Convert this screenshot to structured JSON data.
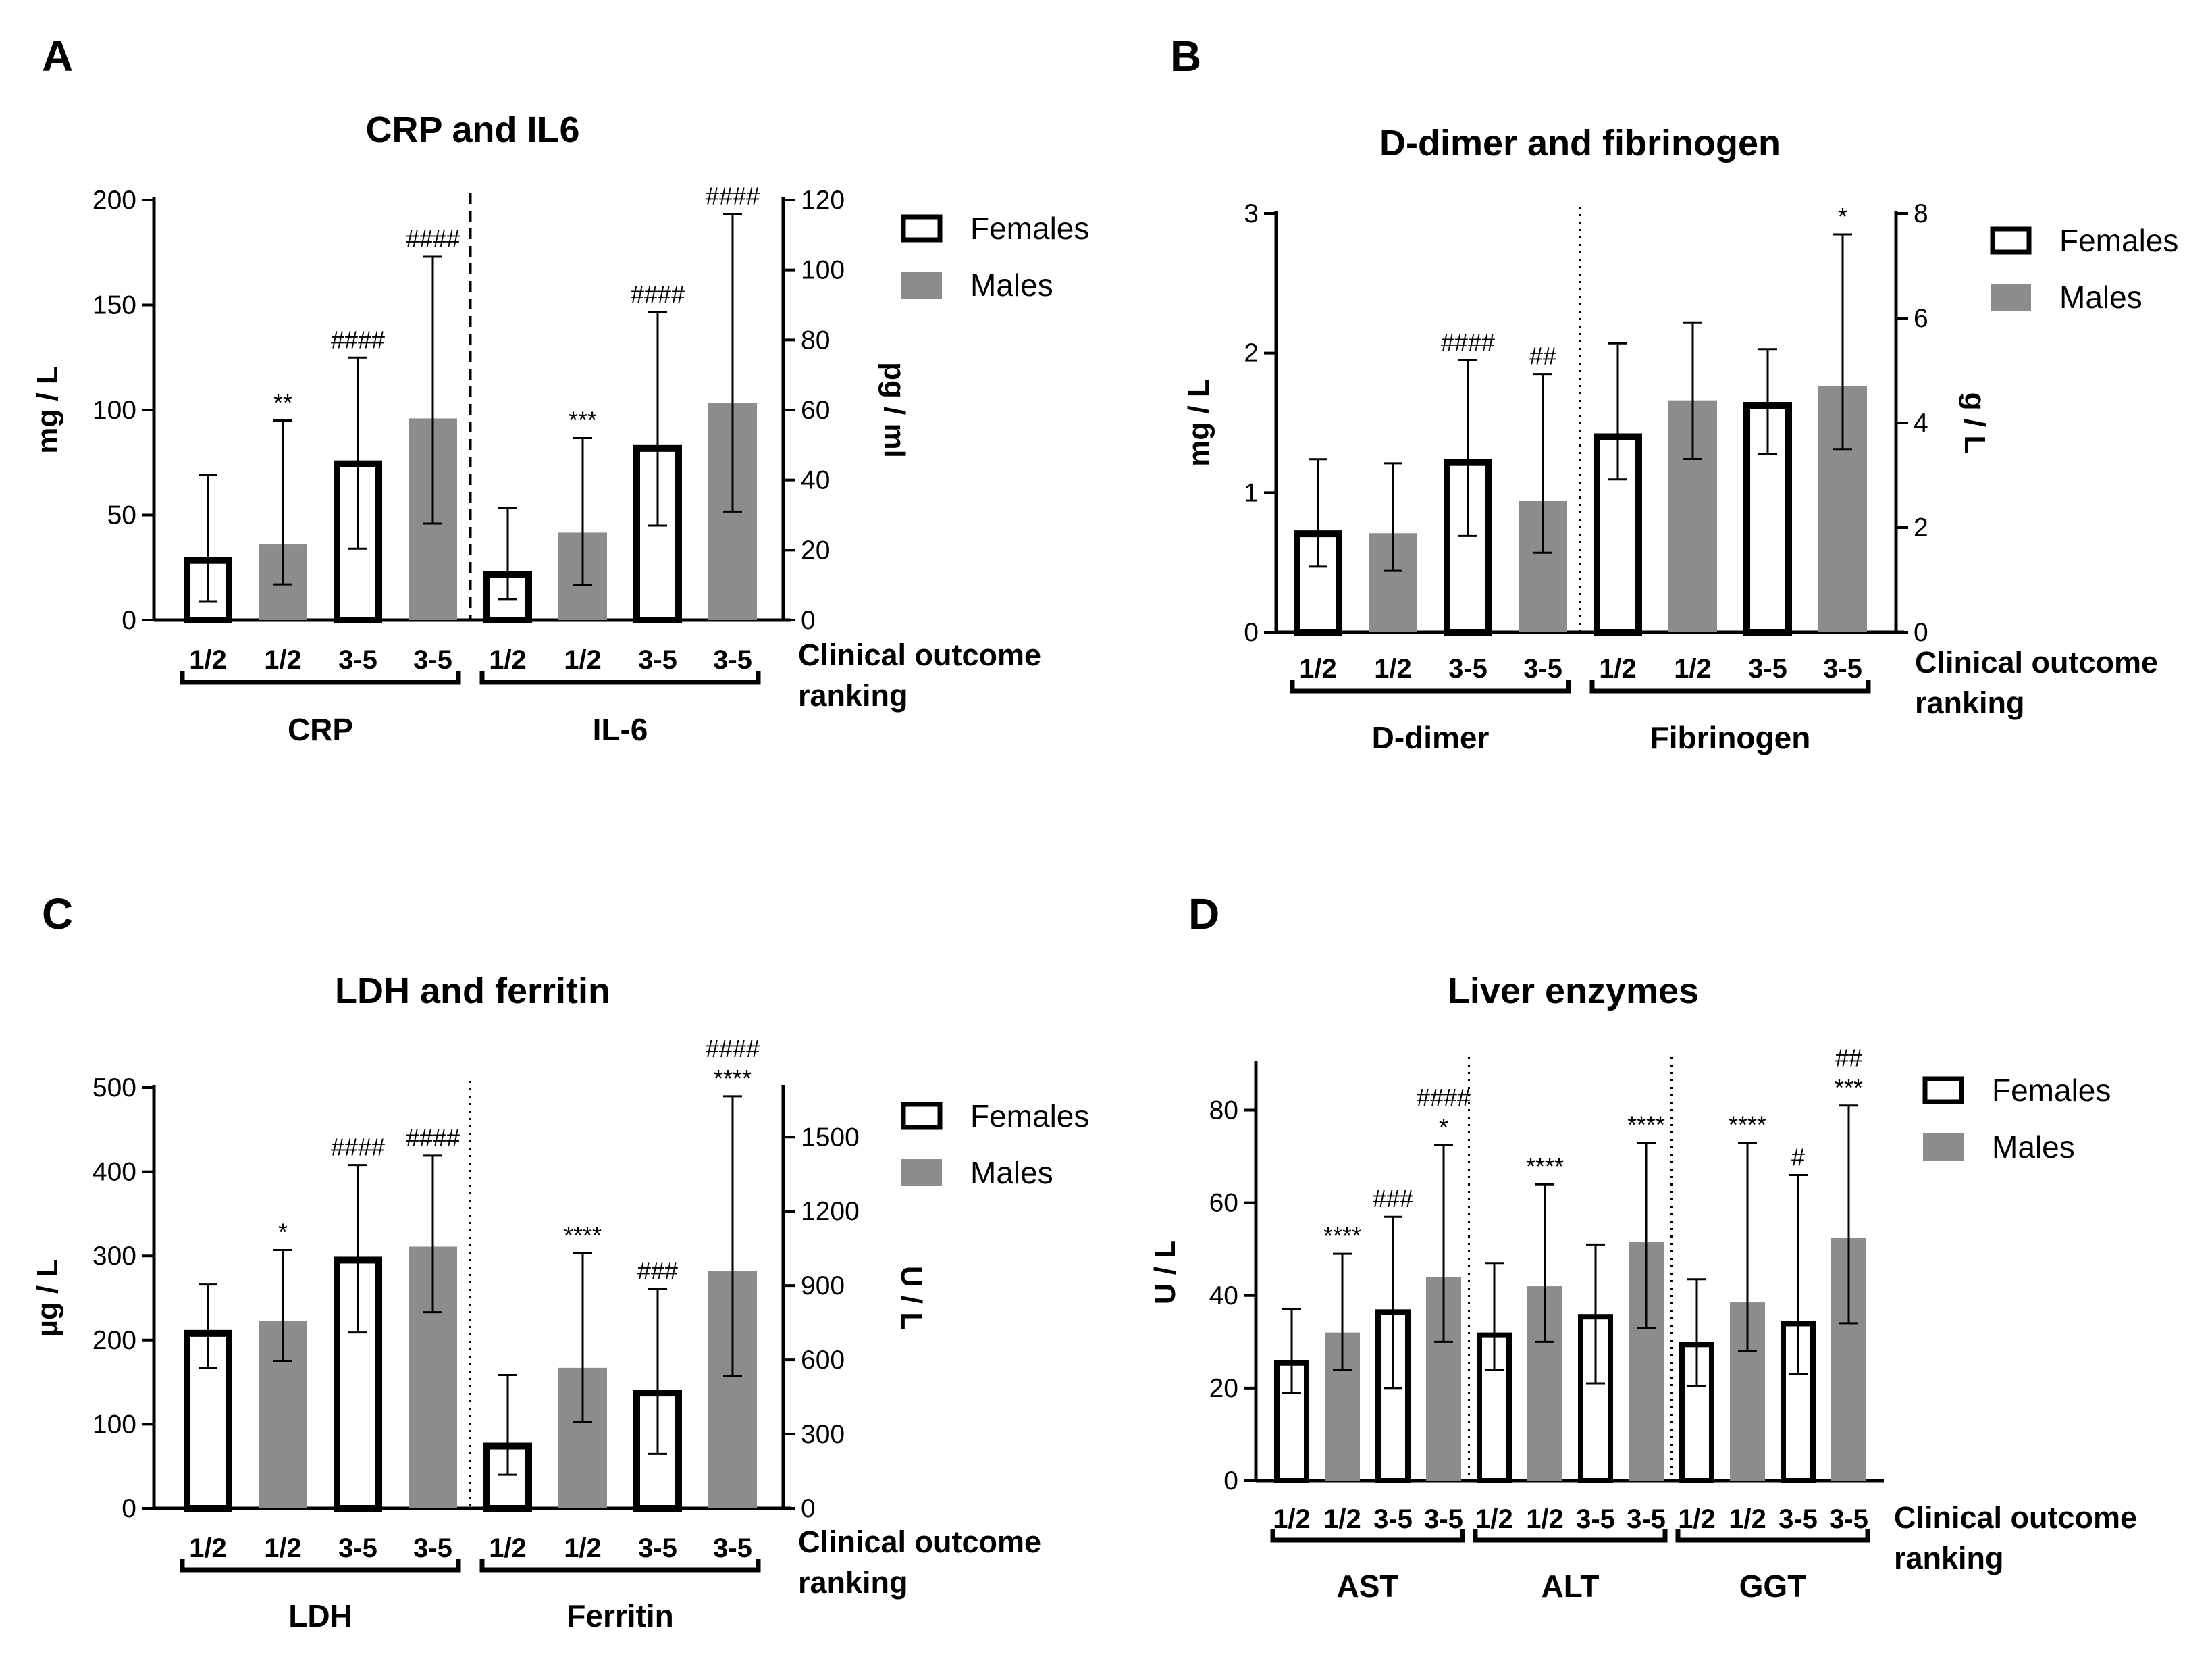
{
  "colors": {
    "females_fill": "#ffffff",
    "males_fill": "#8c8c8c",
    "ink": "#000000"
  },
  "legend": {
    "females": "Females",
    "males": "Males"
  },
  "outcome_label": [
    "Clinical outcome",
    "ranking"
  ],
  "chart_data": [
    {
      "panel": "A",
      "title": "CRP and IL6",
      "type": "bar",
      "left_axis": {
        "label": "mg / L",
        "ylim": [
          0,
          200
        ],
        "ticks": [
          0,
          50,
          100,
          150,
          200
        ]
      },
      "right_axis": {
        "label": "pg / ml",
        "ylim": [
          0,
          120
        ],
        "ticks": [
          0,
          20,
          40,
          60,
          80,
          100,
          120
        ]
      },
      "separator": "dashed",
      "groups": [
        {
          "name": "CRP",
          "axis": "left",
          "bars": [
            {
              "category": "1/2",
              "series": "Females",
              "value": 30,
              "err_low": 9,
              "err_high": 69,
              "annotation": []
            },
            {
              "category": "1/2",
              "series": "Males",
              "value": 36,
              "err_low": 17,
              "err_high": 95,
              "annotation": [
                "**"
              ]
            },
            {
              "category": "3-5",
              "series": "Females",
              "value": 76,
              "err_low": 34,
              "err_high": 125,
              "annotation": [
                "####"
              ]
            },
            {
              "category": "3-5",
              "series": "Males",
              "value": 96,
              "err_low": 46,
              "err_high": 173,
              "annotation": [
                "####"
              ]
            }
          ]
        },
        {
          "name": "IL-6",
          "axis": "right",
          "bars": [
            {
              "category": "1/2",
              "series": "Females",
              "value": 14,
              "err_low": 6,
              "err_high": 32,
              "annotation": []
            },
            {
              "category": "1/2",
              "series": "Males",
              "value": 25,
              "err_low": 10,
              "err_high": 52,
              "annotation": [
                "***"
              ]
            },
            {
              "category": "3-5",
              "series": "Females",
              "value": 50,
              "err_low": 27,
              "err_high": 88,
              "annotation": [
                "####"
              ]
            },
            {
              "category": "3-5",
              "series": "Males",
              "value": 62,
              "err_low": 31,
              "err_high": 116,
              "annotation": [
                "####"
              ]
            }
          ]
        }
      ]
    },
    {
      "panel": "B",
      "title": "D-dimer and fibrinogen",
      "type": "bar",
      "left_axis": {
        "label": "mg / L",
        "ylim": [
          0,
          3
        ],
        "ticks": [
          0,
          1,
          2,
          3
        ]
      },
      "right_axis": {
        "label": "g / L",
        "ylim": [
          0,
          8
        ],
        "ticks": [
          0,
          2,
          4,
          6,
          8
        ]
      },
      "separator": "dotted",
      "groups": [
        {
          "name": "D-dimer",
          "axis": "left",
          "bars": [
            {
              "category": "1/2",
              "series": "Females",
              "value": 0.73,
              "err_low": 0.47,
              "err_high": 1.24,
              "annotation": []
            },
            {
              "category": "1/2",
              "series": "Males",
              "value": 0.71,
              "err_low": 0.44,
              "err_high": 1.21,
              "annotation": []
            },
            {
              "category": "3-5",
              "series": "Females",
              "value": 1.24,
              "err_low": 0.69,
              "err_high": 1.95,
              "annotation": [
                "####"
              ]
            },
            {
              "category": "3-5",
              "series": "Males",
              "value": 0.94,
              "err_low": 0.57,
              "err_high": 1.85,
              "annotation": [
                "##"
              ]
            }
          ]
        },
        {
          "name": "Fibrinogen",
          "axis": "right",
          "bars": [
            {
              "category": "1/2",
              "series": "Females",
              "value": 3.8,
              "err_low": 2.92,
              "err_high": 5.52,
              "annotation": []
            },
            {
              "category": "1/2",
              "series": "Males",
              "value": 4.43,
              "err_low": 3.31,
              "err_high": 5.92,
              "annotation": []
            },
            {
              "category": "3-5",
              "series": "Females",
              "value": 4.4,
              "err_low": 3.4,
              "err_high": 5.41,
              "annotation": []
            },
            {
              "category": "3-5",
              "series": "Males",
              "value": 4.7,
              "err_low": 3.5,
              "err_high": 7.6,
              "annotation": [
                "*"
              ]
            }
          ]
        }
      ]
    },
    {
      "panel": "C",
      "title": "LDH and ferritin",
      "type": "bar",
      "left_axis": {
        "label": "µg / L",
        "ylim": [
          0,
          500
        ],
        "ticks": [
          0,
          100,
          200,
          300,
          400,
          500
        ]
      },
      "right_axis": {
        "label": "U / L",
        "ylim": [
          0,
          1700
        ],
        "ticks": [
          0,
          300,
          600,
          900,
          1200,
          1500
        ]
      },
      "separator": "dotted",
      "groups": [
        {
          "name": "LDH",
          "axis": "left",
          "bars": [
            {
              "category": "1/2",
              "series": "Females",
              "value": 212,
              "err_low": 167,
              "err_high": 266,
              "annotation": []
            },
            {
              "category": "1/2",
              "series": "Males",
              "value": 223,
              "err_low": 175,
              "err_high": 307,
              "annotation": [
                "*"
              ]
            },
            {
              "category": "3-5",
              "series": "Females",
              "value": 299,
              "err_low": 209,
              "err_high": 408,
              "annotation": [
                "####"
              ]
            },
            {
              "category": "3-5",
              "series": "Males",
              "value": 311,
              "err_low": 233,
              "err_high": 419,
              "annotation": [
                "####"
              ]
            }
          ]
        },
        {
          "name": "Ferritin",
          "axis": "right",
          "bars": [
            {
              "category": "1/2",
              "series": "Females",
              "value": 266,
              "err_low": 136,
              "err_high": 539,
              "annotation": []
            },
            {
              "category": "1/2",
              "series": "Males",
              "value": 568,
              "err_low": 349,
              "err_high": 1030,
              "annotation": [
                "****"
              ]
            },
            {
              "category": "3-5",
              "series": "Females",
              "value": 480,
              "err_low": 220,
              "err_high": 888,
              "annotation": [
                "###"
              ]
            },
            {
              "category": "3-5",
              "series": "Males",
              "value": 958,
              "err_low": 536,
              "err_high": 1665,
              "annotation": [
                "####",
                "****"
              ]
            }
          ]
        }
      ]
    },
    {
      "panel": "D",
      "title": "Liver enzymes",
      "type": "bar",
      "left_axis": {
        "label": "U / L",
        "ylim": [
          0,
          90
        ],
        "ticks": [
          0,
          20,
          40,
          60,
          80
        ]
      },
      "right_axis": null,
      "separator": "dotted",
      "groups": [
        {
          "name": "AST",
          "axis": "left",
          "bars": [
            {
              "category": "1/2",
              "series": "Females",
              "value": 26,
              "err_low": 19,
              "err_high": 37,
              "annotation": []
            },
            {
              "category": "1/2",
              "series": "Males",
              "value": 32,
              "err_low": 24,
              "err_high": 49,
              "annotation": [
                "****"
              ]
            },
            {
              "category": "3-5",
              "series": "Females",
              "value": 37,
              "err_low": 20,
              "err_high": 57,
              "annotation": [
                "###"
              ]
            },
            {
              "category": "3-5",
              "series": "Males",
              "value": 44,
              "err_low": 30,
              "err_high": 72.5,
              "annotation": [
                "####",
                "*"
              ]
            }
          ]
        },
        {
          "name": "ALT",
          "axis": "left",
          "bars": [
            {
              "category": "1/2",
              "series": "Females",
              "value": 32,
              "err_low": 24,
              "err_high": 47,
              "annotation": []
            },
            {
              "category": "1/2",
              "series": "Males",
              "value": 42,
              "err_low": 30,
              "err_high": 64,
              "annotation": [
                "****"
              ]
            },
            {
              "category": "3-5",
              "series": "Females",
              "value": 36,
              "err_low": 21,
              "err_high": 51,
              "annotation": []
            },
            {
              "category": "3-5",
              "series": "Males",
              "value": 51.5,
              "err_low": 33,
              "err_high": 73,
              "annotation": [
                "****"
              ]
            }
          ]
        },
        {
          "name": "GGT",
          "axis": "left",
          "bars": [
            {
              "category": "1/2",
              "series": "Females",
              "value": 30,
              "err_low": 20.5,
              "err_high": 43.5,
              "annotation": []
            },
            {
              "category": "1/2",
              "series": "Males",
              "value": 38.5,
              "err_low": 28,
              "err_high": 73,
              "annotation": [
                "****"
              ]
            },
            {
              "category": "3-5",
              "series": "Females",
              "value": 34.5,
              "err_low": 23,
              "err_high": 66,
              "annotation": [
                "#"
              ]
            },
            {
              "category": "3-5",
              "series": "Males",
              "value": 52.5,
              "err_low": 34,
              "err_high": 81,
              "annotation": [
                "##",
                "***"
              ]
            }
          ]
        }
      ]
    }
  ]
}
